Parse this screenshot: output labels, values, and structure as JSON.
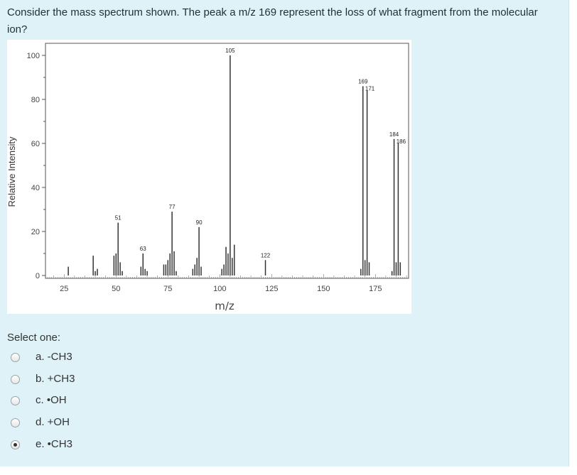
{
  "question": {
    "text": "Consider the mass spectrum shown. The peak a m/z 169 represent the loss of what fragment from the molecular ion?",
    "prompt": "Select one:"
  },
  "options": [
    {
      "label": "a. -CH3",
      "checked": false
    },
    {
      "label": "b. +CH3",
      "checked": false
    },
    {
      "label": "c. •OH",
      "checked": false
    },
    {
      "label": "d. +OH",
      "checked": false
    },
    {
      "label": "e. •CH3",
      "checked": true
    }
  ],
  "chart_data": {
    "type": "bar",
    "title": "",
    "xlabel": "m/z",
    "ylabel": "Relative Intensity",
    "xlim": [
      16,
      191
    ],
    "ylim": [
      0,
      102
    ],
    "xticks": [
      25,
      50,
      75,
      100,
      125,
      150,
      175
    ],
    "yticks": [
      0,
      20,
      40,
      60,
      80,
      100
    ],
    "peaks": [
      {
        "mz": 27,
        "intensity": 4
      },
      {
        "mz": 39,
        "intensity": 9
      },
      {
        "mz": 40,
        "intensity": 2
      },
      {
        "mz": 41,
        "intensity": 3
      },
      {
        "mz": 49,
        "intensity": 9
      },
      {
        "mz": 50,
        "intensity": 10
      },
      {
        "mz": 51,
        "intensity": 24,
        "label": "51"
      },
      {
        "mz": 52,
        "intensity": 6
      },
      {
        "mz": 53,
        "intensity": 2
      },
      {
        "mz": 62,
        "intensity": 4
      },
      {
        "mz": 63,
        "intensity": 10,
        "label": "63"
      },
      {
        "mz": 64,
        "intensity": 3
      },
      {
        "mz": 65,
        "intensity": 2
      },
      {
        "mz": 73,
        "intensity": 5
      },
      {
        "mz": 74,
        "intensity": 5
      },
      {
        "mz": 75,
        "intensity": 7
      },
      {
        "mz": 76,
        "intensity": 10
      },
      {
        "mz": 77,
        "intensity": 29,
        "label": "77"
      },
      {
        "mz": 78,
        "intensity": 11
      },
      {
        "mz": 79,
        "intensity": 2
      },
      {
        "mz": 87,
        "intensity": 3
      },
      {
        "mz": 88,
        "intensity": 5
      },
      {
        "mz": 89,
        "intensity": 8
      },
      {
        "mz": 90,
        "intensity": 22,
        "label": "90"
      },
      {
        "mz": 91,
        "intensity": 4
      },
      {
        "mz": 101,
        "intensity": 3
      },
      {
        "mz": 102,
        "intensity": 5
      },
      {
        "mz": 103,
        "intensity": 13
      },
      {
        "mz": 104,
        "intensity": 10
      },
      {
        "mz": 105,
        "intensity": 100,
        "label": "105"
      },
      {
        "mz": 106,
        "intensity": 8
      },
      {
        "mz": 107,
        "intensity": 14
      },
      {
        "mz": 122,
        "intensity": 7,
        "label": "122"
      },
      {
        "mz": 168,
        "intensity": 3
      },
      {
        "mz": 169,
        "intensity": 86,
        "label": "169"
      },
      {
        "mz": 170,
        "intensity": 7
      },
      {
        "mz": 171,
        "intensity": 84,
        "label": "171"
      },
      {
        "mz": 172,
        "intensity": 6
      },
      {
        "mz": 183,
        "intensity": 2
      },
      {
        "mz": 184,
        "intensity": 62,
        "label": "184"
      },
      {
        "mz": 185,
        "intensity": 6
      },
      {
        "mz": 186,
        "intensity": 60,
        "label": "186"
      },
      {
        "mz": 187,
        "intensity": 6
      }
    ]
  }
}
